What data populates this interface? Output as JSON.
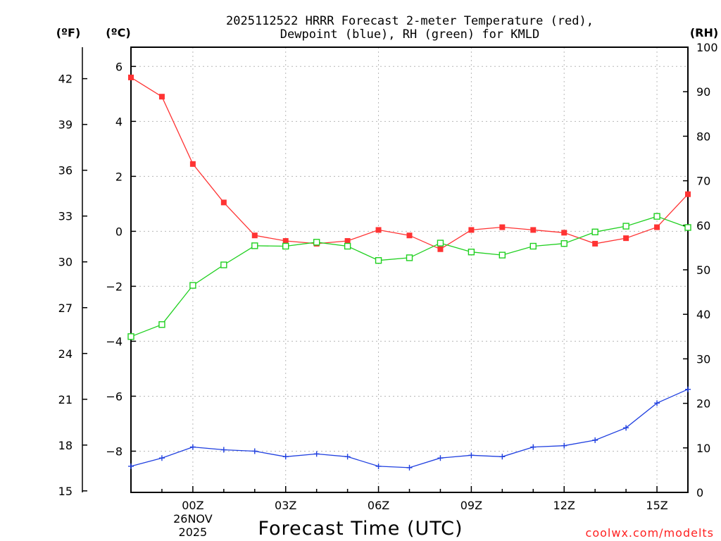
{
  "chart_data": {
    "type": "line",
    "title": [
      "2025112522 HRRR Forecast 2-meter Temperature (red),",
      "Dewpoint (blue), RH (green) for KMLD"
    ],
    "units": {
      "fahrenheit": "(ºF)",
      "celsius": "(ºC)",
      "rh": "(RH)"
    },
    "xlabel": "Forecast Time (UTC)",
    "credit": "coolwx.com/modelts",
    "x": [
      -2,
      -1,
      0,
      1,
      2,
      3,
      4,
      5,
      6,
      7,
      8,
      9,
      10,
      11,
      12,
      13,
      14,
      15,
      16
    ],
    "xlim": [
      -2,
      16
    ],
    "x_ticks": [
      {
        "x": 0,
        "label": "00Z",
        "sub": [
          "26NOV",
          "2025"
        ]
      },
      {
        "x": 3,
        "label": "03Z"
      },
      {
        "x": 6,
        "label": "06Z"
      },
      {
        "x": 9,
        "label": "09Z"
      },
      {
        "x": 12,
        "label": "12Z"
      },
      {
        "x": 15,
        "label": "15Z"
      }
    ],
    "celsius_axis": {
      "ylim": [
        -9.5,
        6.7
      ],
      "ticks": [
        -8,
        -6,
        -4,
        -2,
        0,
        2,
        4,
        6
      ],
      "tick_labels": [
        "−8",
        "−6",
        "−4",
        "−2",
        "0",
        "2",
        "4",
        "6"
      ]
    },
    "fahrenheit_axis": {
      "ticks": [
        15,
        18,
        21,
        24,
        27,
        30,
        33,
        36,
        39,
        42
      ],
      "tick_labels": [
        "15",
        "18",
        "21",
        "24",
        "27",
        "30",
        "33",
        "36",
        "39",
        "42"
      ]
    },
    "rh_axis": {
      "ylim": [
        0,
        100
      ],
      "ticks": [
        0,
        10,
        20,
        30,
        40,
        50,
        60,
        70,
        80,
        90,
        100
      ],
      "tick_labels": [
        "0",
        "10",
        "20",
        "30",
        "40",
        "50",
        "60",
        "70",
        "80",
        "90",
        "100"
      ]
    },
    "series": [
      {
        "name": "Temperature",
        "axis": "celsius",
        "color": "#ff3333",
        "marker": "filled-square",
        "values": [
          5.6,
          4.9,
          2.45,
          1.05,
          -0.15,
          -0.35,
          -0.45,
          -0.35,
          0.05,
          -0.15,
          -0.65,
          0.05,
          0.15,
          0.05,
          -0.05,
          -0.45,
          -0.25,
          0.15,
          1.35
        ]
      },
      {
        "name": "Dewpoint",
        "axis": "celsius",
        "color": "#2040e0",
        "marker": "plus",
        "values": [
          -8.55,
          -8.25,
          -7.85,
          -7.95,
          -8.0,
          -8.2,
          -8.1,
          -8.2,
          -8.55,
          -8.6,
          -8.25,
          -8.15,
          -8.2,
          -7.85,
          -7.8,
          -7.6,
          -7.15,
          -6.25,
          -5.75
        ]
      },
      {
        "name": "RH",
        "axis": "rh",
        "color": "#20d020",
        "marker": "open-square",
        "values": [
          35,
          37.7,
          46.5,
          51.1,
          55.4,
          55.3,
          56.2,
          55.3,
          52.1,
          52.7,
          56.0,
          54.0,
          53.3,
          55.3,
          55.9,
          58.5,
          59.8,
          62.0,
          59.5
        ]
      }
    ],
    "grid": true
  }
}
